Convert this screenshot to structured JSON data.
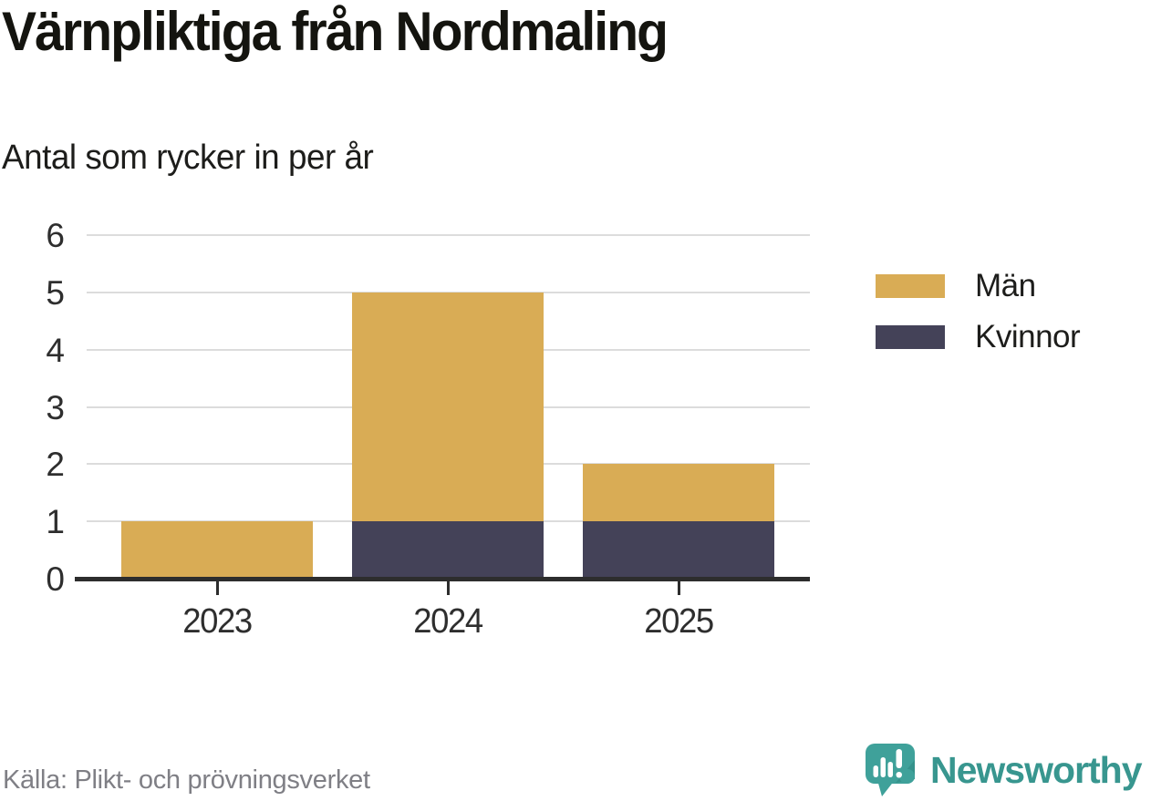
{
  "header": {
    "title": "Värnpliktiga från Nordmaling",
    "subtitle": "Antal som rycker in per år"
  },
  "chart_data": {
    "type": "bar",
    "stacked": true,
    "title": "Värnpliktiga från Nordmaling",
    "subtitle": "Antal som rycker in per år",
    "categories": [
      "2023",
      "2024",
      "2025"
    ],
    "series": [
      {
        "name": "Män",
        "color": "#D9AC55",
        "values": [
          1,
          4,
          1
        ]
      },
      {
        "name": "Kvinnor",
        "color": "#444258",
        "values": [
          0,
          1,
          1
        ]
      }
    ],
    "stack_order_bottom_to_top": [
      "Kvinnor",
      "Män"
    ],
    "totals": [
      1,
      5,
      2
    ],
    "xlabel": "",
    "ylabel": "",
    "ylim": [
      0,
      6
    ],
    "yticks": [
      0,
      1,
      2,
      3,
      4,
      5,
      6
    ],
    "grid": "horizontal",
    "legend_position": "right"
  },
  "legend": {
    "items": [
      {
        "label": "Män",
        "color": "#D9AC55"
      },
      {
        "label": "Kvinnor",
        "color": "#444258"
      }
    ]
  },
  "footer": {
    "source": "Källa: Plikt- och prövningsverket",
    "brand": "Newsworthy"
  },
  "colors": {
    "men": "#D9AC55",
    "women": "#444258",
    "grid": "#DCDCDC",
    "axis": "#2D2D2D",
    "text": "#1A1A1A",
    "muted_text": "#7F7F85",
    "brand_teal": "#38968F",
    "background": "#FFFFFF"
  }
}
